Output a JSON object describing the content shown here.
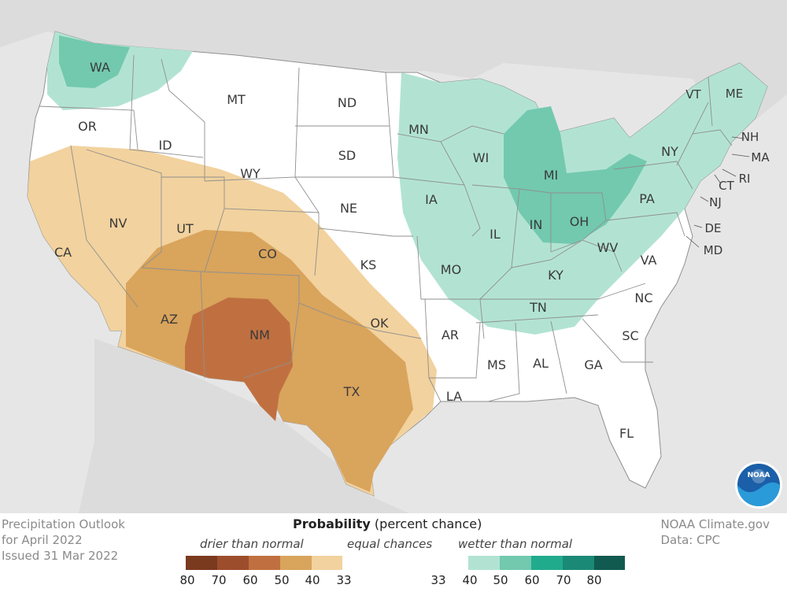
{
  "map": {
    "state_labels": [
      "WA",
      "OR",
      "CA",
      "NV",
      "ID",
      "MT",
      "WY",
      "UT",
      "AZ",
      "NM",
      "CO",
      "ND",
      "SD",
      "NE",
      "KS",
      "OK",
      "TX",
      "MN",
      "IA",
      "MO",
      "AR",
      "LA",
      "WI",
      "IL",
      "MI",
      "IN",
      "OH",
      "KY",
      "TN",
      "MS",
      "AL",
      "GA",
      "FL",
      "SC",
      "NC",
      "VA",
      "WV",
      "PA",
      "NY",
      "VT",
      "ME",
      "NH",
      "MA",
      "RI",
      "CT",
      "NJ",
      "DE",
      "MD"
    ],
    "categories": {
      "above_33_40": [
        "WA",
        "MN",
        "IA",
        "MO",
        "WI",
        "IL",
        "IN",
        "KY",
        "TN",
        "WV",
        "PA",
        "NY",
        "VT",
        "ME",
        "NH",
        "MA",
        "RI",
        "CT",
        "NJ"
      ],
      "above_40_50": [
        "WA",
        "MI",
        "IN",
        "OH",
        "PA"
      ],
      "below_33_40": [
        "CA",
        "NV",
        "UT",
        "AZ",
        "NM",
        "CO",
        "KS",
        "OK",
        "TX",
        "LA"
      ],
      "below_40_50": [
        "AZ",
        "NM",
        "CO",
        "TX"
      ],
      "below_50_60": [
        "NM",
        "TX"
      ]
    }
  },
  "info": {
    "title": "Precipitation Outlook",
    "period": "for April 2022",
    "issued": "Issued 31 Mar 2022",
    "source": "NOAA Climate.gov",
    "data": "Data: CPC"
  },
  "legend": {
    "title_bold": "Probability",
    "title_rest": " (percent chance)",
    "drier": "drier than normal",
    "equal": "equal chances",
    "wetter": "wetter than normal",
    "colors": [
      "#7a3a1e",
      "#9c4d2c",
      "#c07040",
      "#d9a45c",
      "#f2d29e",
      "#ffffff",
      "#ffffff",
      "#ffffff",
      "#ffffff",
      "#b2e3d2",
      "#72c9ae",
      "#21ab8d",
      "#1a8a76",
      "#115a4f"
    ],
    "ticks_left": [
      "80",
      "70",
      "60",
      "50",
      "40",
      "33"
    ],
    "ticks_right": [
      "33",
      "40",
      "50",
      "60",
      "70",
      "80"
    ]
  },
  "logo": {
    "text": "NOAA"
  }
}
